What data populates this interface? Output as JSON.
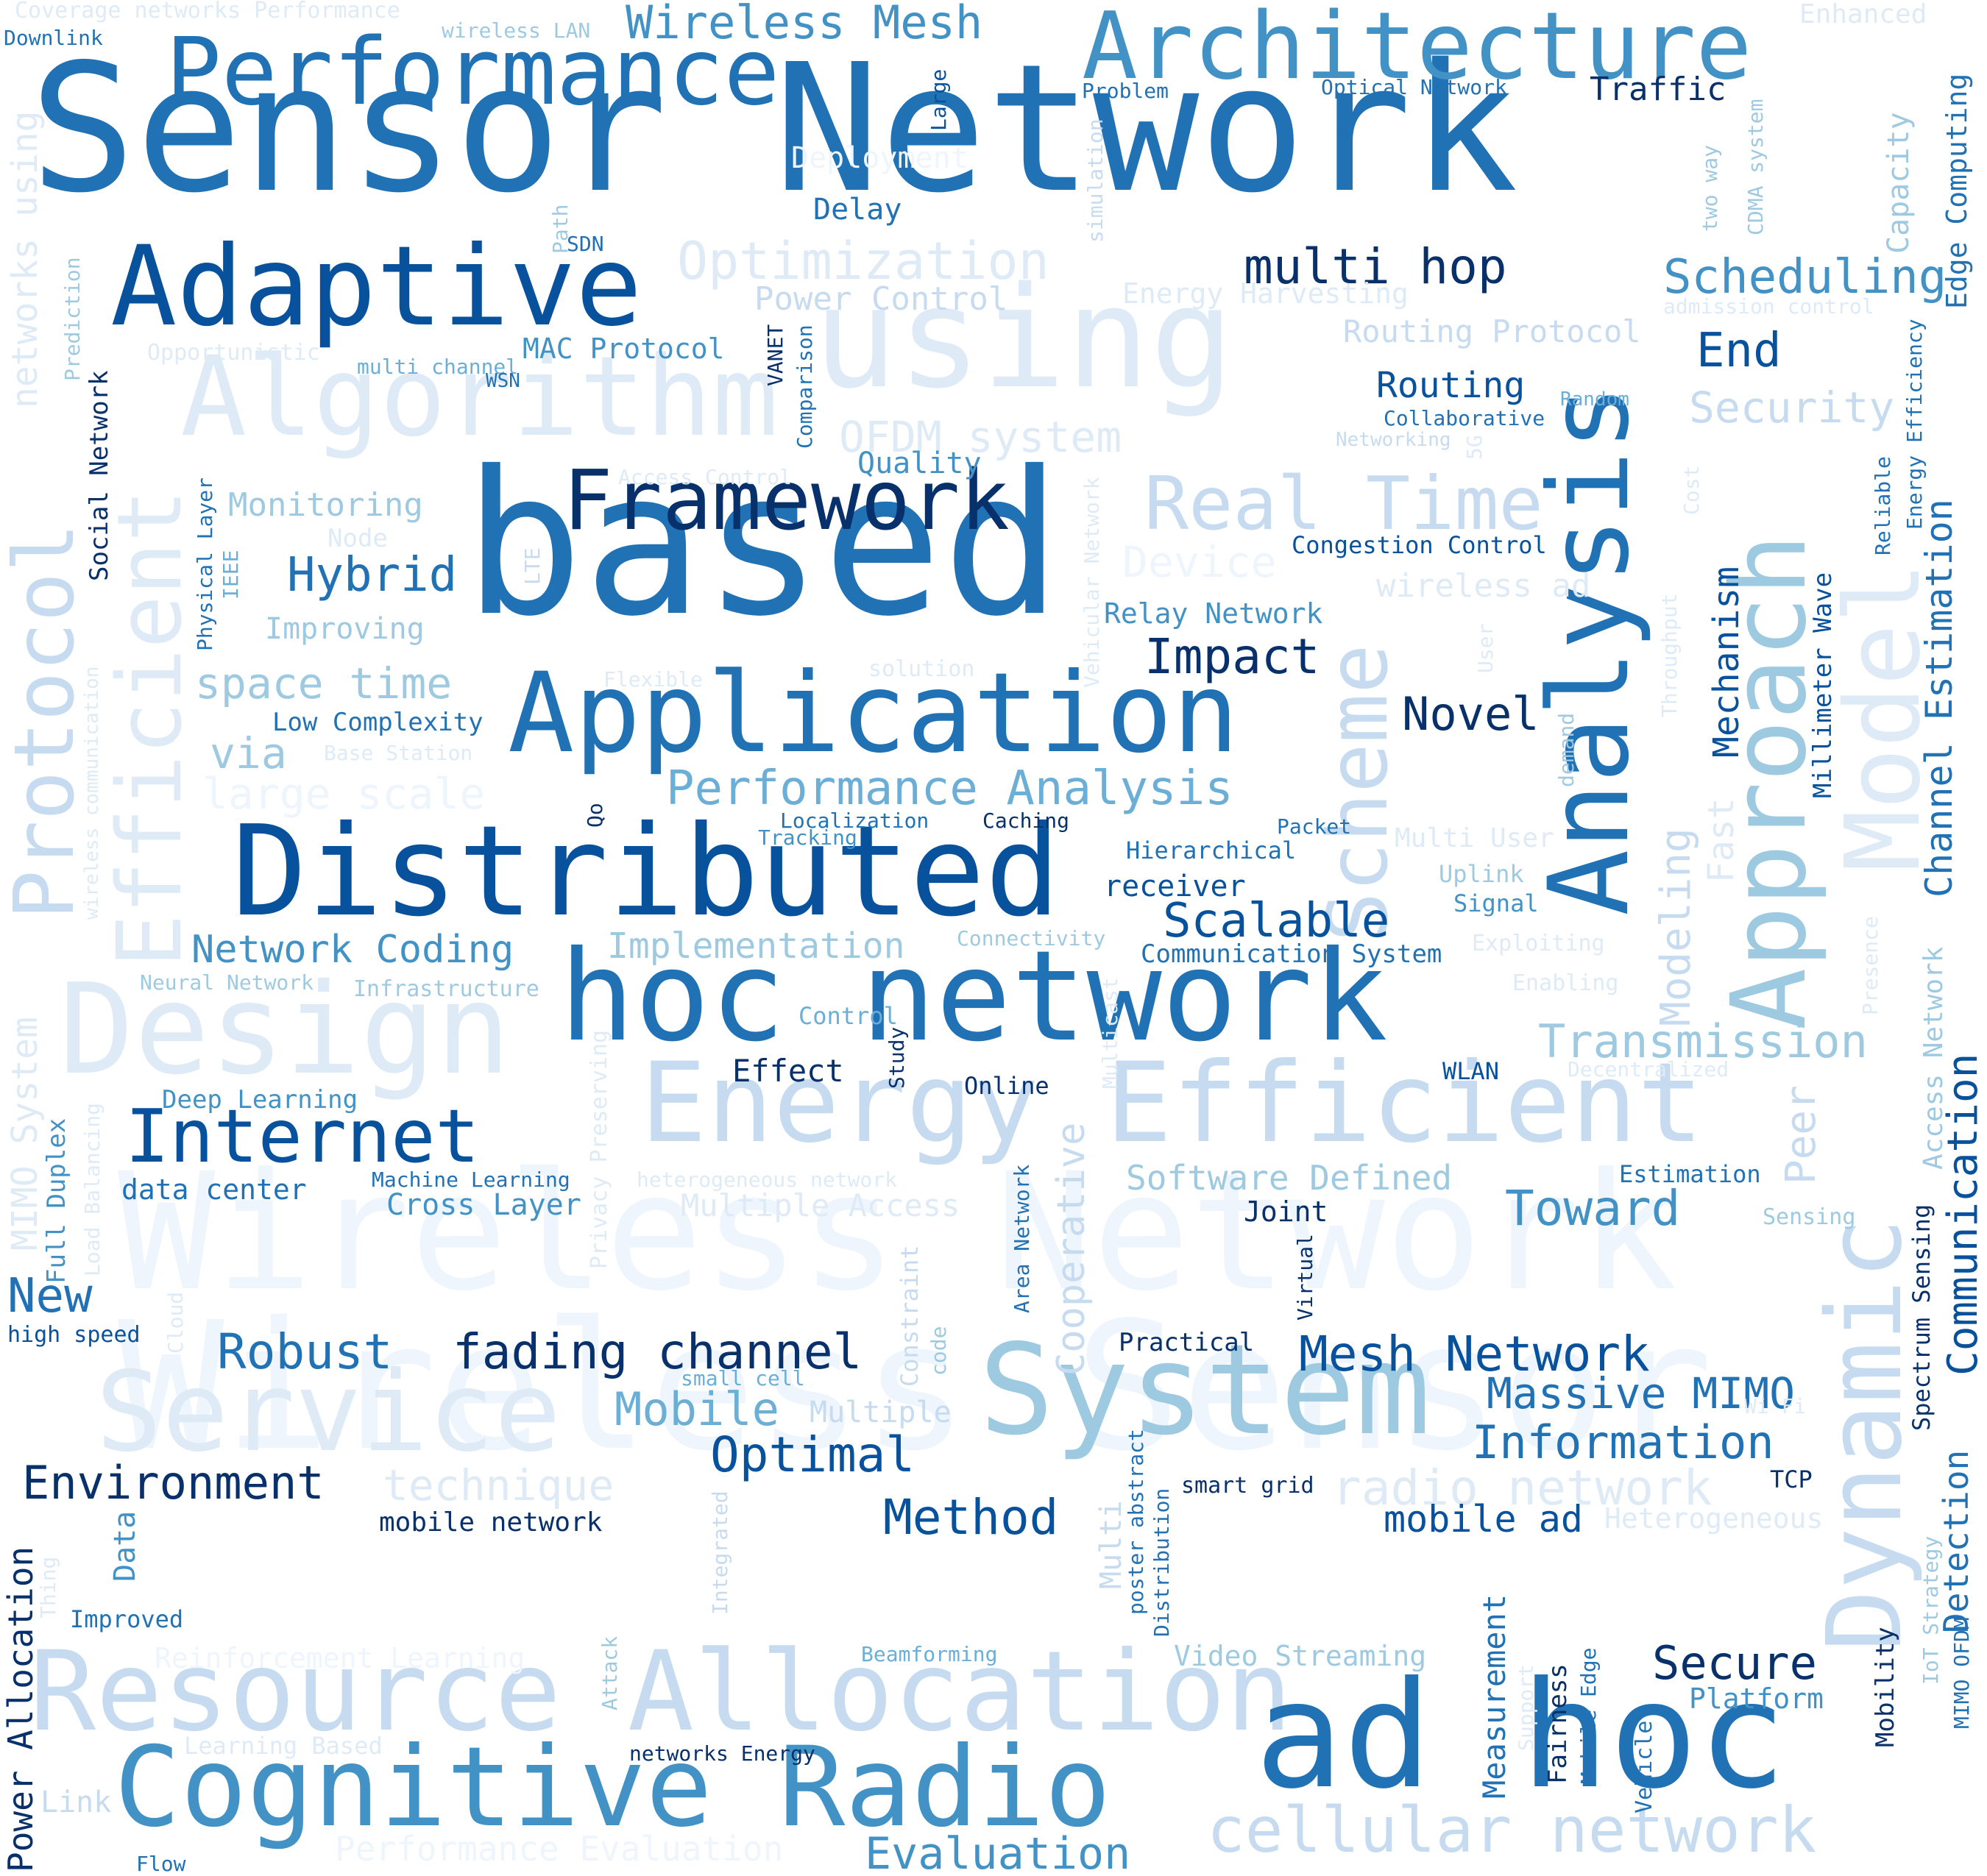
{
  "palette": [
    "#08306b",
    "#08519c",
    "#2171b5",
    "#4292c6",
    "#6baed6",
    "#9ecae1",
    "#c6dbef",
    "#deebf7",
    "#eef5fc"
  ],
  "words": [
    {
      "text": "Sensor Network",
      "color": "#2171b5"
    },
    {
      "text": "Wireless Sensor",
      "color": "#eef5fc"
    },
    {
      "text": "Wireless Network",
      "color": "#eef5fc"
    },
    {
      "text": "based",
      "color": "#2171b5"
    },
    {
      "text": "Architecture",
      "color": "#4292c6"
    },
    {
      "text": "Performance",
      "color": "#2171b5"
    },
    {
      "text": "Wireless Mesh",
      "color": "#4292c6"
    },
    {
      "text": "Adaptive",
      "color": "#08519c"
    },
    {
      "text": "Algorithm",
      "color": "#deebf7"
    },
    {
      "text": "using",
      "color": "#deebf7"
    },
    {
      "text": "Analysis",
      "color": "#2171b5"
    },
    {
      "text": "Framework",
      "color": "#08306b"
    },
    {
      "text": "Application",
      "color": "#2171b5"
    },
    {
      "text": "Distributed",
      "color": "#08519c"
    },
    {
      "text": "hoc network",
      "color": "#2171b5"
    },
    {
      "text": "Energy Efficient",
      "color": "#c6dbef"
    },
    {
      "text": "Design",
      "color": "#deebf7"
    },
    {
      "text": "System",
      "color": "#9ecae1"
    },
    {
      "text": "Service",
      "color": "#deebf7"
    },
    {
      "text": "Resource Allocation",
      "color": "#c6dbef"
    },
    {
      "text": "Cognitive Radio",
      "color": "#4292c6"
    },
    {
      "text": "ad hoc",
      "color": "#2171b5"
    },
    {
      "text": "cellular network",
      "color": "#c6dbef"
    },
    {
      "text": "Internet",
      "color": "#08519c"
    },
    {
      "text": "Protocol",
      "color": "#c6dbef"
    },
    {
      "text": "Efficient",
      "color": "#deebf7"
    },
    {
      "text": "Approach",
      "color": "#9ecae1"
    },
    {
      "text": "Model",
      "color": "#deebf7"
    },
    {
      "text": "Dynamic",
      "color": "#c6dbef"
    },
    {
      "text": "Scheme",
      "color": "#c6dbef"
    },
    {
      "text": "Real Time",
      "color": "#c6dbef"
    },
    {
      "text": "Optimization",
      "color": "#deebf7"
    },
    {
      "text": "multi hop",
      "color": "#08306b"
    },
    {
      "text": "Scheduling",
      "color": "#4292c6"
    },
    {
      "text": "Routing Protocol",
      "color": "#c6dbef"
    },
    {
      "text": "End",
      "color": "#08519c"
    },
    {
      "text": "Security",
      "color": "#c6dbef"
    },
    {
      "text": "Routing",
      "color": "#08519c"
    },
    {
      "text": "Collaborative",
      "color": "#2171b5"
    },
    {
      "text": "Random",
      "color": "#6baed6"
    },
    {
      "text": "Networking",
      "color": "#c6dbef"
    },
    {
      "text": "Power Control",
      "color": "#c6dbef"
    },
    {
      "text": "Energy Harvesting",
      "color": "#deebf7"
    },
    {
      "text": "Delay",
      "color": "#2171b5"
    },
    {
      "text": "Deployment",
      "color": "#eef5fc"
    },
    {
      "text": "Traffic",
      "color": "#08306b"
    },
    {
      "text": "Optical Network",
      "color": "#2171b5"
    },
    {
      "text": "Problem",
      "color": "#2171b5"
    },
    {
      "text": "Enhanced",
      "color": "#deebf7"
    },
    {
      "text": "Coverage networks Performance",
      "color": "#deebf7"
    },
    {
      "text": "wireless LAN",
      "color": "#9ecae1"
    },
    {
      "text": "Downlink",
      "color": "#2171b5"
    },
    {
      "text": "SDN",
      "color": "#2171b5"
    },
    {
      "text": "MAC Protocol",
      "color": "#4292c6"
    },
    {
      "text": "Opportunistic",
      "color": "#deebf7"
    },
    {
      "text": "multi channel",
      "color": "#6baed6"
    },
    {
      "text": "WSN",
      "color": "#2171b5"
    },
    {
      "text": "OFDM system",
      "color": "#deebf7"
    },
    {
      "text": "Quality",
      "color": "#4292c6"
    },
    {
      "text": "Access Control",
      "color": "#deebf7"
    },
    {
      "text": "Monitoring",
      "color": "#9ecae1"
    },
    {
      "text": "Node",
      "color": "#deebf7"
    },
    {
      "text": "Hybrid",
      "color": "#2171b5"
    },
    {
      "text": "Improving",
      "color": "#9ecae1"
    },
    {
      "text": "space time",
      "color": "#9ecae1"
    },
    {
      "text": "Low Complexity",
      "color": "#2171b5"
    },
    {
      "text": "via",
      "color": "#9ecae1"
    },
    {
      "text": "Base Station",
      "color": "#deebf7"
    },
    {
      "text": "large scale",
      "color": "#eef5fc"
    },
    {
      "text": "Flexible",
      "color": "#deebf7"
    },
    {
      "text": "solution",
      "color": "#deebf7"
    },
    {
      "text": "Device",
      "color": "#eef5fc"
    },
    {
      "text": "Congestion Control",
      "color": "#08519c"
    },
    {
      "text": "wireless ad",
      "color": "#deebf7"
    },
    {
      "text": "Relay Network",
      "color": "#4292c6"
    },
    {
      "text": "Impact",
      "color": "#08306b"
    },
    {
      "text": "Novel",
      "color": "#08306b"
    },
    {
      "text": "Performance Analysis",
      "color": "#6baed6"
    },
    {
      "text": "Localization",
      "color": "#2171b5"
    },
    {
      "text": "Caching",
      "color": "#08306b"
    },
    {
      "text": "Tracking",
      "color": "#4292c6"
    },
    {
      "text": "Packet",
      "color": "#2171b5"
    },
    {
      "text": "Hierarchical",
      "color": "#2171b5"
    },
    {
      "text": "receiver",
      "color": "#08519c"
    },
    {
      "text": "Scalable",
      "color": "#08519c"
    },
    {
      "text": "Multi User",
      "color": "#deebf7"
    },
    {
      "text": "Uplink",
      "color": "#9ecae1"
    },
    {
      "text": "Signal",
      "color": "#4292c6"
    },
    {
      "text": "Communication System",
      "color": "#2171b5"
    },
    {
      "text": "Connectivity",
      "color": "#9ecae1"
    },
    {
      "text": "Network Coding",
      "color": "#4292c6"
    },
    {
      "text": "Implementation",
      "color": "#9ecae1"
    },
    {
      "text": "Neural Network",
      "color": "#9ecae1"
    },
    {
      "text": "Infrastructure",
      "color": "#9ecae1"
    },
    {
      "text": "Exploiting",
      "color": "#deebf7"
    },
    {
      "text": "Enabling",
      "color": "#deebf7"
    },
    {
      "text": "Transmission",
      "color": "#9ecae1"
    },
    {
      "text": "Decentralized",
      "color": "#deebf7"
    },
    {
      "text": "Control",
      "color": "#6baed6"
    },
    {
      "text": "Effect",
      "color": "#08306b"
    },
    {
      "text": "Online",
      "color": "#08306b"
    },
    {
      "text": "WLAN",
      "color": "#08519c"
    },
    {
      "text": "Deep Learning",
      "color": "#4292c6"
    },
    {
      "text": "data center",
      "color": "#2171b5"
    },
    {
      "text": "Machine Learning",
      "color": "#2171b5"
    },
    {
      "text": "Cross Layer",
      "color": "#4292c6"
    },
    {
      "text": "heterogeneous network",
      "color": "#deebf7"
    },
    {
      "text": "Multiple Access",
      "color": "#deebf7"
    },
    {
      "text": "Software Defined",
      "color": "#9ecae1"
    },
    {
      "text": "Joint",
      "color": "#08306b"
    },
    {
      "text": "Toward",
      "color": "#4292c6"
    },
    {
      "text": "Estimation",
      "color": "#2171b5"
    },
    {
      "text": "Sensing",
      "color": "#9ecae1"
    },
    {
      "text": "New",
      "color": "#2171b5"
    },
    {
      "text": "high speed",
      "color": "#08519c"
    },
    {
      "text": "Robust",
      "color": "#2171b5"
    },
    {
      "text": "fading channel",
      "color": "#08306b"
    },
    {
      "text": "small cell",
      "color": "#6baed6"
    },
    {
      "text": "Mobile",
      "color": "#6baed6"
    },
    {
      "text": "Multiple",
      "color": "#c6dbef"
    },
    {
      "text": "Practical",
      "color": "#08306b"
    },
    {
      "text": "Mesh Network",
      "color": "#08519c"
    },
    {
      "text": "Massive MIMO",
      "color": "#2171b5"
    },
    {
      "text": "Information",
      "color": "#2171b5"
    },
    {
      "text": "Optimal",
      "color": "#08519c"
    },
    {
      "text": "Environment",
      "color": "#08306b"
    },
    {
      "text": "technique",
      "color": "#deebf7"
    },
    {
      "text": "mobile network",
      "color": "#08306b"
    },
    {
      "text": "smart grid",
      "color": "#08306b"
    },
    {
      "text": "radio network",
      "color": "#deebf7"
    },
    {
      "text": "TCP",
      "color": "#08306b"
    },
    {
      "text": "mobile ad",
      "color": "#08519c"
    },
    {
      "text": "Heterogeneous",
      "color": "#deebf7"
    },
    {
      "text": "Method",
      "color": "#08519c"
    },
    {
      "text": "Improved",
      "color": "#2171b5"
    },
    {
      "text": "Reinforcement Learning",
      "color": "#eef5fc"
    },
    {
      "text": "Beamforming",
      "color": "#6baed6"
    },
    {
      "text": "Video Streaming",
      "color": "#9ecae1"
    },
    {
      "text": "Secure",
      "color": "#08306b"
    },
    {
      "text": "Platform",
      "color": "#4292c6"
    },
    {
      "text": "Learning Based",
      "color": "#deebf7"
    },
    {
      "text": "networks Energy",
      "color": "#08306b"
    },
    {
      "text": "Link",
      "color": "#c6dbef"
    },
    {
      "text": "Performance Evaluation",
      "color": "#eef5fc"
    },
    {
      "text": "Evaluation",
      "color": "#4292c6"
    },
    {
      "text": "Flow",
      "color": "#2171b5"
    },
    {
      "text": "Large",
      "color": "#08519c"
    },
    {
      "text": "simulation",
      "color": "#c6dbef"
    },
    {
      "text": "two way",
      "color": "#9ecae1"
    },
    {
      "text": "CDMA system",
      "color": "#9ecae1"
    },
    {
      "text": "Capacity",
      "color": "#9ecae1"
    },
    {
      "text": "Edge Computing",
      "color": "#2171b5"
    },
    {
      "text": "admission control",
      "color": "#deebf7"
    },
    {
      "text": "Energy Efficiency",
      "color": "#2171b5"
    },
    {
      "text": "Reliable",
      "color": "#2171b5"
    },
    {
      "text": "Cost",
      "color": "#deebf7"
    },
    {
      "text": "5G",
      "color": "#deebf7"
    },
    {
      "text": "Channel Estimation",
      "color": "#2171b5"
    },
    {
      "text": "Mechanism",
      "color": "#08519c"
    },
    {
      "text": "Millimeter Wave",
      "color": "#08519c"
    },
    {
      "text": "Throughput",
      "color": "#deebf7"
    },
    {
      "text": "User",
      "color": "#deebf7"
    },
    {
      "text": "demand",
      "color": "#9ecae1"
    },
    {
      "text": "Fast",
      "color": "#deebf7"
    },
    {
      "text": "Modeling",
      "color": "#c6dbef"
    },
    {
      "text": "Communication",
      "color": "#08519c"
    },
    {
      "text": "Access Network",
      "color": "#9ecae1"
    },
    {
      "text": "Presence",
      "color": "#deebf7"
    },
    {
      "text": "Peer",
      "color": "#c6dbef"
    },
    {
      "text": "Detection",
      "color": "#2171b5"
    },
    {
      "text": "Spectrum Sensing",
      "color": "#08306b"
    },
    {
      "text": "Wi Fi",
      "color": "#deebf7"
    },
    {
      "text": "Mobility",
      "color": "#08306b"
    },
    {
      "text": "IoT Strategy",
      "color": "#9ecae1"
    },
    {
      "text": "MIMO OFDM",
      "color": "#2171b5"
    },
    {
      "text": "Fairness",
      "color": "#08306b"
    },
    {
      "text": "Mobile Edge",
      "color": "#2171b5"
    },
    {
      "text": "Support",
      "color": "#deebf7"
    },
    {
      "text": "Measurement",
      "color": "#2171b5"
    },
    {
      "text": "Vehicle",
      "color": "#2171b5"
    },
    {
      "text": "Path",
      "color": "#9ecae1"
    },
    {
      "text": "VANET",
      "color": "#08306b"
    },
    {
      "text": "Comparison",
      "color": "#2171b5"
    },
    {
      "text": "Vehicular Network",
      "color": "#deebf7"
    },
    {
      "text": "Qo",
      "color": "#08306b"
    },
    {
      "text": "Study",
      "color": "#08306b"
    },
    {
      "text": "Multicast",
      "color": "#deebf7"
    },
    {
      "text": "Cooperative",
      "color": "#c6dbef"
    },
    {
      "text": "Area Network",
      "color": "#2171b5"
    },
    {
      "text": "Virtual",
      "color": "#08306b"
    },
    {
      "text": "Constraint",
      "color": "#c6dbef"
    },
    {
      "text": "code",
      "color": "#9ecae1"
    },
    {
      "text": "Cloud",
      "color": "#deebf7"
    },
    {
      "text": "Multi",
      "color": "#c6dbef"
    },
    {
      "text": "poster abstract",
      "color": "#2171b5"
    },
    {
      "text": "Distribution",
      "color": "#2171b5"
    },
    {
      "text": "Integrated",
      "color": "#c6dbef"
    },
    {
      "text": "Attack",
      "color": "#9ecae1"
    },
    {
      "text": "Privacy Preserving",
      "color": "#deebf7"
    },
    {
      "text": "Load Balancing",
      "color": "#deebf7"
    },
    {
      "text": "Full Duplex",
      "color": "#4292c6"
    },
    {
      "text": "MIMO System",
      "color": "#deebf7"
    },
    {
      "text": "wireless communication",
      "color": "#deebf7"
    },
    {
      "text": "Social Network",
      "color": "#08306b"
    },
    {
      "text": "networks using",
      "color": "#deebf7"
    },
    {
      "text": "Prediction",
      "color": "#9ecae1"
    },
    {
      "text": "Physical Layer",
      "color": "#2171b5"
    },
    {
      "text": "IEEE",
      "color": "#6baed6"
    },
    {
      "text": "LTE",
      "color": "#c6dbef"
    },
    {
      "text": "Data",
      "color": "#4292c6"
    },
    {
      "text": "Thing",
      "color": "#deebf7"
    },
    {
      "text": "Power Allocation",
      "color": "#08306b"
    }
  ]
}
